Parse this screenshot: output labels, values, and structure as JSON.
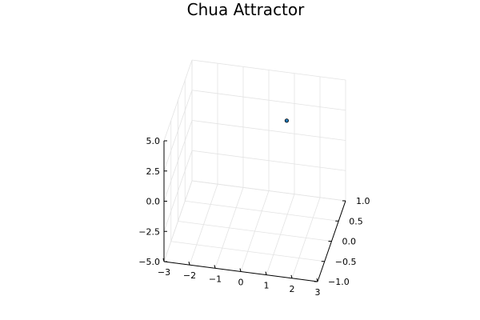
{
  "chart_data": {
    "type": "scatter",
    "title": "Chua Attractor",
    "projection": "3d",
    "xlabel": "",
    "ylabel": "",
    "zlabel": "",
    "xlim": [
      -3,
      3
    ],
    "ylim": [
      -1,
      1
    ],
    "zlim": [
      -5,
      5
    ],
    "x_ticks": [
      "−3",
      "−2",
      "−1",
      "0",
      "1",
      "2",
      "3"
    ],
    "y_ticks": [
      "−1.0",
      "−0.5",
      "0.0",
      "0.5",
      "1.0"
    ],
    "z_ticks": [
      "−5.0",
      "−2.5",
      "0.0",
      "2.5",
      "5.0"
    ],
    "grid": true,
    "legend": "none",
    "series": [
      {
        "points": [
          {
            "x": 0.7,
            "y": 1.0,
            "z": 1.0
          }
        ],
        "color": "#1f77b4"
      }
    ]
  }
}
